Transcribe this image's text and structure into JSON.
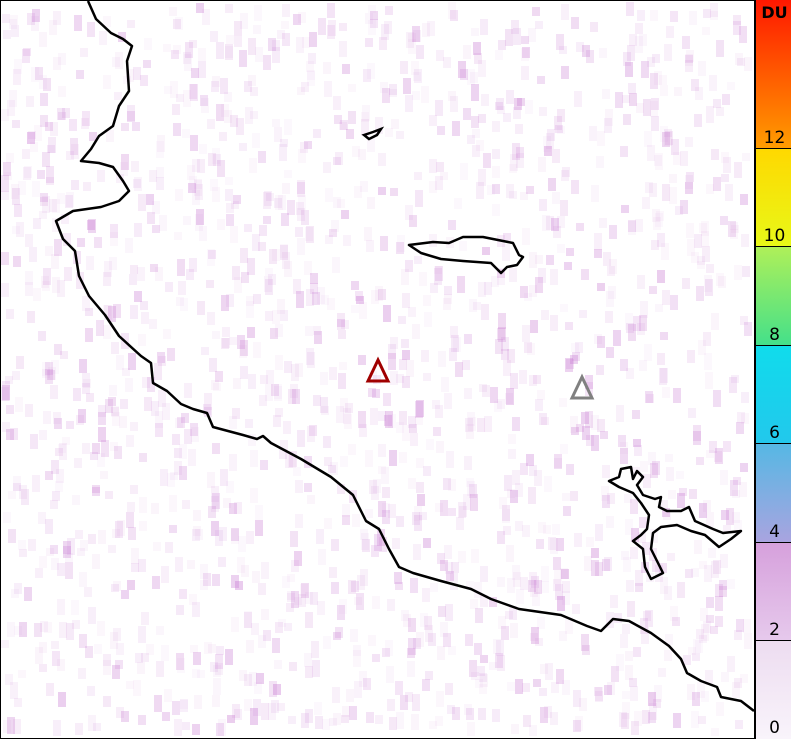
{
  "colorbar": {
    "unit": "DU",
    "range": [
      0,
      15
    ],
    "ticks": [
      "0",
      "2",
      "4",
      "6",
      "8",
      "10",
      "12"
    ],
    "segments": [
      {
        "from": 0,
        "to": 2,
        "colors": [
          "#f9f4fb",
          "#eddcf0"
        ]
      },
      {
        "from": 2,
        "to": 4,
        "colors": [
          "#e6c9ec",
          "#d6a0dc"
        ]
      },
      {
        "from": 4,
        "to": 6,
        "colors": [
          "#a9a4e0",
          "#55b8e4"
        ]
      },
      {
        "from": 6,
        "to": 8,
        "colors": [
          "#22c8ec",
          "#10dcec"
        ]
      },
      {
        "from": 8,
        "to": 10,
        "colors": [
          "#44e08a",
          "#b0f058"
        ]
      },
      {
        "from": 10,
        "to": 12,
        "colors": [
          "#e8f818",
          "#ffd800"
        ]
      },
      {
        "from": 12,
        "to": 15,
        "colors": [
          "#ff9c00",
          "#ff1800"
        ]
      }
    ]
  },
  "map": {
    "background": "#ffffff",
    "pixel_color": "#c87ad2",
    "markers": [
      {
        "name": "volcano-marker-active",
        "color": "#a00000"
      },
      {
        "name": "volcano-marker-inactive",
        "color": "#808080"
      }
    ]
  }
}
